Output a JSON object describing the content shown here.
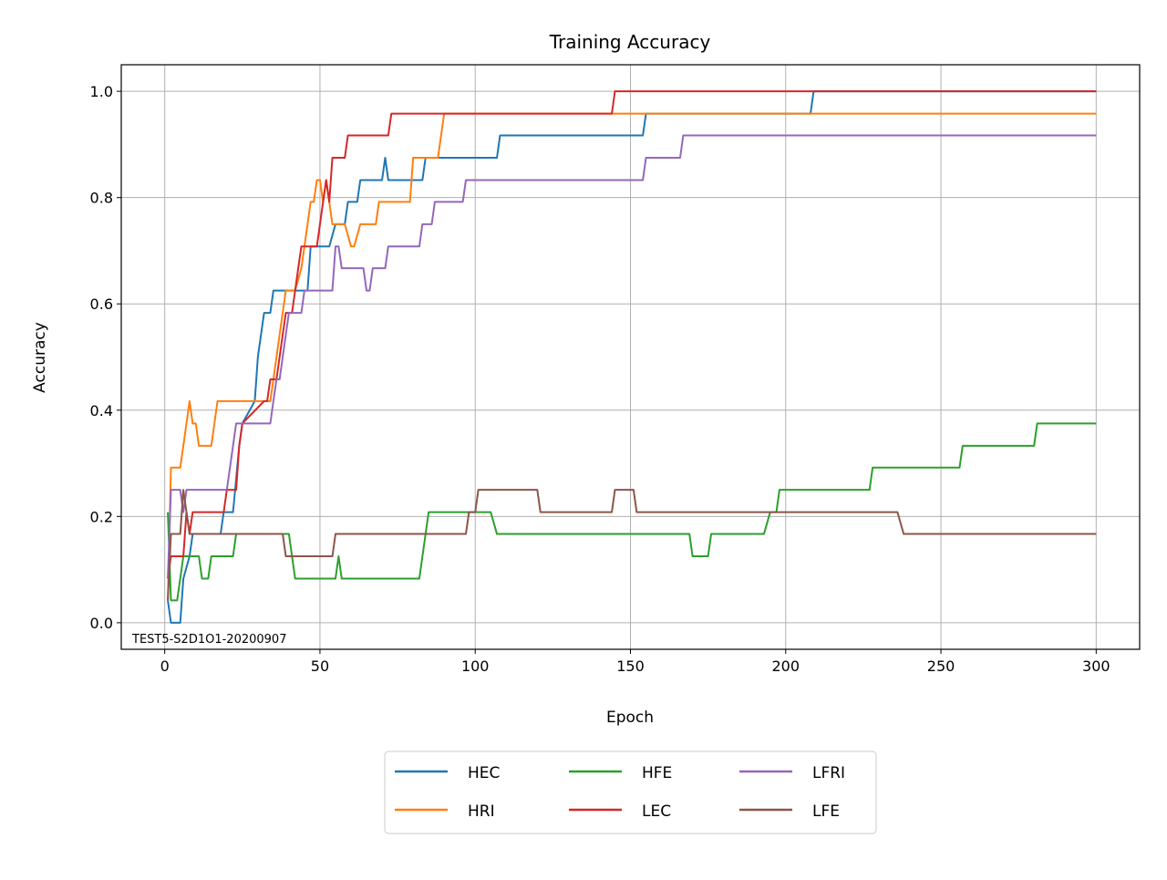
{
  "chart_data": {
    "type": "line",
    "title": "Training Accuracy",
    "xlabel": "Epoch",
    "ylabel": "Accuracy",
    "xlim": [
      -14,
      314
    ],
    "ylim": [
      -0.05,
      1.05
    ],
    "xticks": [
      0,
      50,
      100,
      150,
      200,
      250,
      300
    ],
    "yticks": [
      0.0,
      0.2,
      0.4,
      0.6,
      0.8,
      1.0
    ],
    "ytick_labels": [
      "0.0",
      "0.2",
      "0.4",
      "0.6",
      "0.8",
      "1.0"
    ],
    "grid": true,
    "legend_placement": "below plot, centered, 3 columns",
    "annotation": "TEST5-S2D1O1-20200907",
    "series": [
      {
        "name": "HEC",
        "color": "#1f77b4",
        "points": [
          [
            1,
            0.042
          ],
          [
            2,
            0.0
          ],
          [
            5,
            0.0
          ],
          [
            6,
            0.083
          ],
          [
            8,
            0.125
          ],
          [
            9,
            0.167
          ],
          [
            18,
            0.167
          ],
          [
            19,
            0.208
          ],
          [
            22,
            0.208
          ],
          [
            24,
            0.333
          ],
          [
            25,
            0.375
          ],
          [
            29,
            0.417
          ],
          [
            30,
            0.5
          ],
          [
            32,
            0.583
          ],
          [
            34,
            0.583
          ],
          [
            35,
            0.625
          ],
          [
            46,
            0.625
          ],
          [
            47,
            0.708
          ],
          [
            53,
            0.708
          ],
          [
            55,
            0.75
          ],
          [
            58,
            0.75
          ],
          [
            59,
            0.792
          ],
          [
            62,
            0.792
          ],
          [
            63,
            0.833
          ],
          [
            70,
            0.833
          ],
          [
            71,
            0.875
          ],
          [
            72,
            0.833
          ],
          [
            83,
            0.833
          ],
          [
            84,
            0.875
          ],
          [
            107,
            0.875
          ],
          [
            108,
            0.917
          ],
          [
            154,
            0.917
          ],
          [
            155,
            0.958
          ],
          [
            208,
            0.958
          ],
          [
            209,
            1.0
          ],
          [
            300,
            1.0
          ]
        ]
      },
      {
        "name": "HRI",
        "color": "#ff7f0e",
        "points": [
          [
            1,
            0.042
          ],
          [
            2,
            0.292
          ],
          [
            5,
            0.292
          ],
          [
            6,
            0.333
          ],
          [
            7,
            0.375
          ],
          [
            8,
            0.417
          ],
          [
            9,
            0.375
          ],
          [
            10,
            0.375
          ],
          [
            11,
            0.333
          ],
          [
            15,
            0.333
          ],
          [
            16,
            0.375
          ],
          [
            17,
            0.417
          ],
          [
            34,
            0.417
          ],
          [
            35,
            0.458
          ],
          [
            37,
            0.542
          ],
          [
            39,
            0.625
          ],
          [
            42,
            0.625
          ],
          [
            44,
            0.667
          ],
          [
            46,
            0.75
          ],
          [
            47,
            0.792
          ],
          [
            48,
            0.792
          ],
          [
            49,
            0.833
          ],
          [
            50,
            0.833
          ],
          [
            51,
            0.792
          ],
          [
            52,
            0.833
          ],
          [
            54,
            0.75
          ],
          [
            58,
            0.75
          ],
          [
            60,
            0.708
          ],
          [
            61,
            0.708
          ],
          [
            63,
            0.75
          ],
          [
            68,
            0.75
          ],
          [
            69,
            0.792
          ],
          [
            79,
            0.792
          ],
          [
            80,
            0.875
          ],
          [
            88,
            0.875
          ],
          [
            90,
            0.958
          ],
          [
            300,
            0.958
          ]
        ]
      },
      {
        "name": "HFE",
        "color": "#2ca02c",
        "points": [
          [
            1,
            0.208
          ],
          [
            2,
            0.042
          ],
          [
            4,
            0.042
          ],
          [
            5,
            0.083
          ],
          [
            6,
            0.125
          ],
          [
            11,
            0.125
          ],
          [
            12,
            0.083
          ],
          [
            14,
            0.083
          ],
          [
            15,
            0.125
          ],
          [
            22,
            0.125
          ],
          [
            23,
            0.167
          ],
          [
            40,
            0.167
          ],
          [
            42,
            0.083
          ],
          [
            55,
            0.083
          ],
          [
            56,
            0.125
          ],
          [
            57,
            0.083
          ],
          [
            82,
            0.083
          ],
          [
            85,
            0.208
          ],
          [
            105,
            0.208
          ],
          [
            107,
            0.167
          ],
          [
            169,
            0.167
          ],
          [
            170,
            0.125
          ],
          [
            175,
            0.125
          ],
          [
            176,
            0.167
          ],
          [
            193,
            0.167
          ],
          [
            195,
            0.208
          ],
          [
            197,
            0.208
          ],
          [
            198,
            0.25
          ],
          [
            227,
            0.25
          ],
          [
            228,
            0.292
          ],
          [
            256,
            0.292
          ],
          [
            257,
            0.333
          ],
          [
            280,
            0.333
          ],
          [
            281,
            0.375
          ],
          [
            300,
            0.375
          ]
        ]
      },
      {
        "name": "LEC",
        "color": "#d62728",
        "points": [
          [
            1,
            0.083
          ],
          [
            2,
            0.125
          ],
          [
            6,
            0.125
          ],
          [
            7,
            0.208
          ],
          [
            8,
            0.167
          ],
          [
            9,
            0.208
          ],
          [
            19,
            0.208
          ],
          [
            20,
            0.25
          ],
          [
            23,
            0.25
          ],
          [
            24,
            0.333
          ],
          [
            25,
            0.375
          ],
          [
            32,
            0.417
          ],
          [
            33,
            0.417
          ],
          [
            34,
            0.458
          ],
          [
            36,
            0.458
          ],
          [
            37,
            0.5
          ],
          [
            38,
            0.542
          ],
          [
            39,
            0.583
          ],
          [
            41,
            0.583
          ],
          [
            42,
            0.625
          ],
          [
            43,
            0.667
          ],
          [
            44,
            0.708
          ],
          [
            49,
            0.708
          ],
          [
            50,
            0.75
          ],
          [
            52,
            0.833
          ],
          [
            53,
            0.792
          ],
          [
            54,
            0.875
          ],
          [
            58,
            0.875
          ],
          [
            59,
            0.917
          ],
          [
            72,
            0.917
          ],
          [
            73,
            0.958
          ],
          [
            144,
            0.958
          ],
          [
            145,
            1.0
          ],
          [
            300,
            1.0
          ]
        ]
      },
      {
        "name": "LFRI",
        "color": "#9467bd",
        "points": [
          [
            1,
            0.083
          ],
          [
            2,
            0.25
          ],
          [
            5,
            0.25
          ],
          [
            6,
            0.208
          ],
          [
            7,
            0.25
          ],
          [
            20,
            0.25
          ],
          [
            22,
            0.333
          ],
          [
            23,
            0.375
          ],
          [
            34,
            0.375
          ],
          [
            35,
            0.417
          ],
          [
            36,
            0.458
          ],
          [
            37,
            0.458
          ],
          [
            38,
            0.5
          ],
          [
            39,
            0.542
          ],
          [
            40,
            0.583
          ],
          [
            44,
            0.583
          ],
          [
            45,
            0.625
          ],
          [
            54,
            0.625
          ],
          [
            55,
            0.708
          ],
          [
            56,
            0.708
          ],
          [
            57,
            0.667
          ],
          [
            64,
            0.667
          ],
          [
            65,
            0.625
          ],
          [
            66,
            0.625
          ],
          [
            67,
            0.667
          ],
          [
            71,
            0.667
          ],
          [
            72,
            0.708
          ],
          [
            82,
            0.708
          ],
          [
            83,
            0.75
          ],
          [
            86,
            0.75
          ],
          [
            87,
            0.792
          ],
          [
            96,
            0.792
          ],
          [
            97,
            0.833
          ],
          [
            154,
            0.833
          ],
          [
            155,
            0.875
          ],
          [
            166,
            0.875
          ],
          [
            167,
            0.917
          ],
          [
            300,
            0.917
          ]
        ]
      },
      {
        "name": "LFE",
        "color": "#8c564b",
        "points": [
          [
            1,
            0.042
          ],
          [
            2,
            0.167
          ],
          [
            5,
            0.167
          ],
          [
            6,
            0.25
          ],
          [
            7,
            0.208
          ],
          [
            8,
            0.167
          ],
          [
            38,
            0.167
          ],
          [
            39,
            0.125
          ],
          [
            54,
            0.125
          ],
          [
            55,
            0.167
          ],
          [
            97,
            0.167
          ],
          [
            98,
            0.208
          ],
          [
            100,
            0.208
          ],
          [
            101,
            0.25
          ],
          [
            120,
            0.25
          ],
          [
            121,
            0.208
          ],
          [
            144,
            0.208
          ],
          [
            145,
            0.25
          ],
          [
            151,
            0.25
          ],
          [
            152,
            0.208
          ],
          [
            236,
            0.208
          ],
          [
            238,
            0.167
          ],
          [
            300,
            0.167
          ]
        ]
      }
    ]
  }
}
